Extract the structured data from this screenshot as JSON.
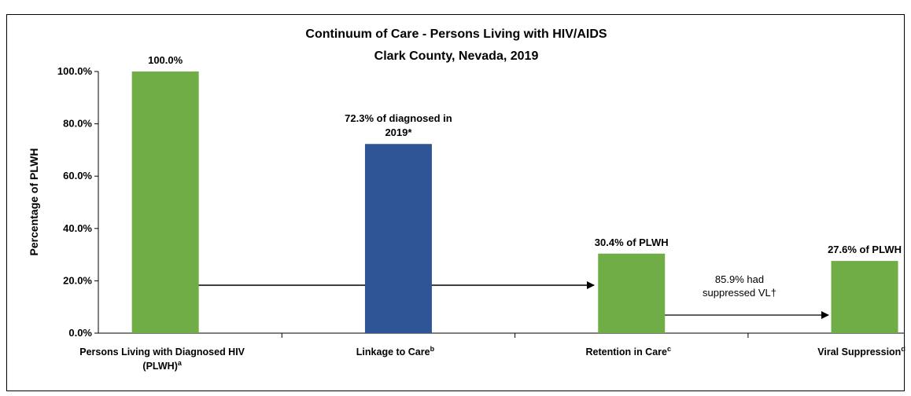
{
  "chart_data": {
    "type": "bar",
    "title": "Continuum of Care - Persons Living with HIV/AIDS",
    "subtitle": "Clark County, Nevada, 2019",
    "y_label": "Percentage of PLWH",
    "categories": [
      "Persons Living with Diagnosed HIV (PLWH)",
      "Linkage to Care",
      "Retention in Care",
      "Viral Suppression"
    ],
    "category_notes": [
      "a",
      "b",
      "c",
      "d"
    ],
    "values": [
      100.0,
      72.3,
      30.4,
      27.6
    ],
    "value_labels": [
      "100.0%",
      "72.3% of diagnosed in 2019*",
      "30.4% of PLWH",
      "27.6% of PLWH"
    ],
    "colors": [
      "#70ad47",
      "#2f5597",
      "#70ad47",
      "#70ad47"
    ],
    "annotation": "85.9% had suppressed VL†",
    "ylim": [
      0,
      100
    ],
    "yticks": [
      {
        "value": 0,
        "label": "0.0%"
      },
      {
        "value": 20,
        "label": "20.0%"
      },
      {
        "value": 40,
        "label": "40.0%"
      },
      {
        "value": 60,
        "label": "60.0%"
      },
      {
        "value": 80,
        "label": "80.0%"
      },
      {
        "value": 100,
        "label": "100.0%"
      }
    ]
  }
}
